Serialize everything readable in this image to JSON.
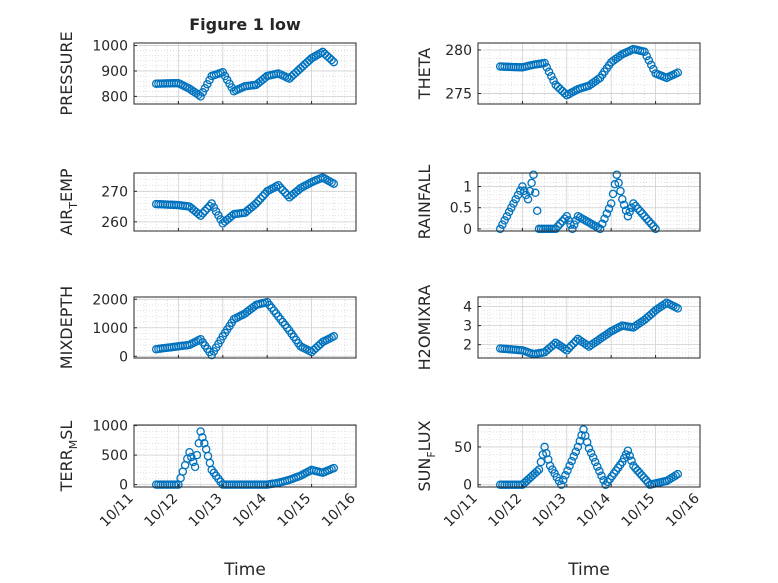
{
  "figure": {
    "title": "Figure 1 low",
    "xlabel": "Time",
    "x_ticks": [
      "10/11",
      "10/12",
      "10/13",
      "10/14",
      "10/15",
      "10/16"
    ],
    "marker_color": "#0072BD"
  },
  "chart_data": [
    {
      "type": "scatter",
      "id": "pressure",
      "ylabel": "PRESSURE",
      "ylabel_parts": [],
      "ylim": [
        770,
        1010
      ],
      "yticks": [
        800,
        900,
        1000
      ],
      "ytick_labels": [
        "800",
        "900",
        "1000"
      ],
      "grid": true,
      "x": [
        "10/11 12:00",
        "10/12 00:00",
        "10/12 06:00",
        "10/12 12:00",
        "10/12 18:00",
        "10/13 00:00",
        "10/13 06:00",
        "10/13 12:00",
        "10/13 18:00",
        "10/14 00:00",
        "10/14 06:00",
        "10/14 12:00",
        "10/14 18:00",
        "10/15 00:00",
        "10/15 06:00",
        "10/15 12:00"
      ],
      "series": [
        {
          "values": [
            850,
            852,
            830,
            800,
            880,
            895,
            820,
            840,
            845,
            880,
            890,
            870,
            910,
            950,
            975,
            935
          ]
        }
      ]
    },
    {
      "type": "scatter",
      "id": "theta",
      "ylabel": "THETA",
      "ylabel_parts": [],
      "ylim": [
        273.8,
        280.8
      ],
      "yticks": [
        275,
        280
      ],
      "ytick_labels": [
        "275",
        "280"
      ],
      "grid": true,
      "x": [
        "10/11 12:00",
        "10/12 00:00",
        "10/12 06:00",
        "10/12 12:00",
        "10/12 18:00",
        "10/13 00:00",
        "10/13 06:00",
        "10/13 12:00",
        "10/13 18:00",
        "10/14 00:00",
        "10/14 06:00",
        "10/14 12:00",
        "10/14 18:00",
        "10/15 00:00",
        "10/15 06:00",
        "10/15 12:00"
      ],
      "series": [
        {
          "values": [
            278.1,
            278.0,
            278.3,
            278.5,
            276.0,
            274.8,
            275.5,
            275.9,
            276.8,
            278.6,
            279.5,
            280.1,
            279.8,
            277.3,
            276.8,
            277.4
          ]
        }
      ]
    },
    {
      "type": "scatter",
      "id": "air_temp",
      "ylabel": "",
      "ylabel_parts": [
        "AIR",
        "T",
        "EMP"
      ],
      "ylim": [
        257,
        276
      ],
      "yticks": [
        260,
        270
      ],
      "ytick_labels": [
        "260",
        "270"
      ],
      "grid": true,
      "x": [
        "10/11 12:00",
        "10/12 00:00",
        "10/12 06:00",
        "10/12 12:00",
        "10/12 18:00",
        "10/13 00:00",
        "10/13 06:00",
        "10/13 12:00",
        "10/13 18:00",
        "10/14 00:00",
        "10/14 06:00",
        "10/14 12:00",
        "10/14 18:00",
        "10/15 00:00",
        "10/15 06:00",
        "10/15 12:00"
      ],
      "series": [
        {
          "values": [
            265.8,
            265.5,
            265.0,
            262.0,
            266.0,
            259.5,
            262.5,
            263.0,
            266.0,
            270.0,
            272.0,
            268.0,
            271.0,
            273.0,
            274.5,
            272.5
          ]
        }
      ]
    },
    {
      "type": "scatter",
      "id": "rainfall",
      "ylabel": "RAINFALL",
      "ylabel_parts": [],
      "ylim": [
        -0.05,
        1.32
      ],
      "yticks": [
        0,
        0.5,
        1
      ],
      "ytick_labels": [
        "0",
        "0.5",
        "1"
      ],
      "grid": true,
      "x": [
        "10/11 12:00",
        "10/12 00:00",
        "10/12 03:00",
        "10/12 06:00",
        "10/12 09:00",
        "10/12 18:00",
        "10/13 00:00",
        "10/13 03:00",
        "10/13 06:00",
        "10/13 18:00",
        "10/14 00:00",
        "10/14 03:00",
        "10/14 06:00",
        "10/14 09:00",
        "10/14 12:00",
        "10/15 00:00"
      ],
      "series": [
        {
          "values": [
            0,
            1.0,
            0.7,
            1.28,
            0,
            0,
            0.3,
            0,
            0.3,
            0,
            0.6,
            1.28,
            0.7,
            0.3,
            0.6,
            0
          ]
        }
      ]
    },
    {
      "type": "scatter",
      "id": "mixdepth",
      "ylabel": "MIXDEPTH",
      "ylabel_parts": [],
      "ylim": [
        -60,
        2080
      ],
      "yticks": [
        0,
        1000,
        2000
      ],
      "ytick_labels": [
        "0",
        "1000",
        "2000"
      ],
      "grid": true,
      "x": [
        "10/11 12:00",
        "10/12 00:00",
        "10/12 06:00",
        "10/12 12:00",
        "10/12 18:00",
        "10/13 00:00",
        "10/13 06:00",
        "10/13 12:00",
        "10/13 18:00",
        "10/14 00:00",
        "10/14 06:00",
        "10/14 12:00",
        "10/14 18:00",
        "10/15 00:00",
        "10/15 06:00",
        "10/15 12:00"
      ],
      "series": [
        {
          "values": [
            250,
            350,
            400,
            600,
            40,
            700,
            1300,
            1500,
            1800,
            1900,
            1400,
            900,
            350,
            150,
            500,
            700
          ]
        }
      ]
    },
    {
      "type": "scatter",
      "id": "h2omixra",
      "ylabel": "H2OMIXRA",
      "ylabel_parts": [],
      "ylim": [
        1.3,
        4.5
      ],
      "yticks": [
        2,
        3,
        4
      ],
      "ytick_labels": [
        "2",
        "3",
        "4"
      ],
      "grid": true,
      "x": [
        "10/11 12:00",
        "10/12 00:00",
        "10/12 06:00",
        "10/12 12:00",
        "10/12 18:00",
        "10/13 00:00",
        "10/13 06:00",
        "10/13 12:00",
        "10/13 18:00",
        "10/14 00:00",
        "10/14 06:00",
        "10/14 12:00",
        "10/14 18:00",
        "10/15 00:00",
        "10/15 06:00",
        "10/15 12:00"
      ],
      "series": [
        {
          "values": [
            1.8,
            1.7,
            1.5,
            1.6,
            2.1,
            1.7,
            2.3,
            1.9,
            2.3,
            2.7,
            3.0,
            2.9,
            3.3,
            3.8,
            4.2,
            3.9
          ]
        }
      ]
    },
    {
      "type": "scatter",
      "id": "terr_msl",
      "ylabel": "",
      "ylabel_parts": [
        "TERR",
        "M",
        "SL"
      ],
      "ylim": [
        -40,
        1010
      ],
      "yticks": [
        0,
        500,
        1000
      ],
      "ytick_labels": [
        "0",
        "500",
        "1000"
      ],
      "grid": true,
      "x": [
        "10/11 12:00",
        "10/12 00:00",
        "10/12 06:00",
        "10/12 09:00",
        "10/12 12:00",
        "10/12 15:00",
        "10/12 18:00",
        "10/13 00:00",
        "10/13 12:00",
        "10/14 00:00",
        "10/14 06:00",
        "10/14 12:00",
        "10/14 18:00",
        "10/15 00:00",
        "10/15 06:00",
        "10/15 12:00"
      ],
      "series": [
        {
          "values": [
            0,
            0,
            550,
            300,
            900,
            600,
            250,
            0,
            0,
            0,
            30,
            80,
            150,
            250,
            200,
            280
          ]
        }
      ]
    },
    {
      "type": "scatter",
      "id": "sun_flux",
      "ylabel": "",
      "ylabel_parts": [
        "SUN",
        "F",
        "LUX"
      ],
      "ylim": [
        -3,
        79
      ],
      "yticks": [
        0,
        50
      ],
      "ytick_labels": [
        "0",
        "50"
      ],
      "grid": true,
      "x": [
        "10/11 12:00",
        "10/12 00:00",
        "10/12 09:00",
        "10/12 12:00",
        "10/12 15:00",
        "10/12 21:00",
        "10/13 06:00",
        "10/13 09:00",
        "10/13 12:00",
        "10/13 21:00",
        "10/14 06:00",
        "10/14 09:00",
        "10/14 12:00",
        "10/14 21:00",
        "10/15 06:00",
        "10/15 12:00"
      ],
      "series": [
        {
          "values": [
            0,
            0,
            20,
            50,
            25,
            0,
            50,
            73,
            48,
            0,
            30,
            45,
            25,
            0,
            5,
            14
          ]
        }
      ]
    }
  ]
}
